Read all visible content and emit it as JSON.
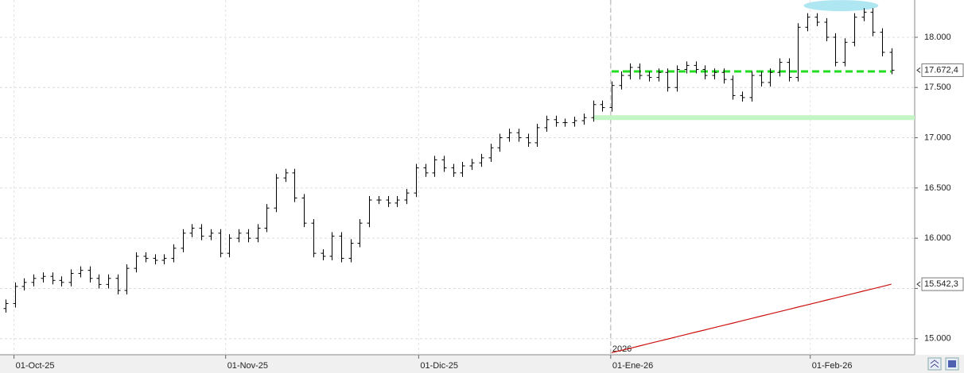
{
  "chart_data": {
    "type": "ohlc",
    "xlim": [
      -0.6,
      97.5
    ],
    "ylim": [
      14840,
      18371
    ],
    "yticks": [
      {
        "value": 15000,
        "label": "15.000"
      },
      {
        "value": 15500,
        "label": "15.500"
      },
      {
        "value": 16000,
        "label": "16.000"
      },
      {
        "value": 16500,
        "label": "16.500"
      },
      {
        "value": 17000,
        "label": "17.000"
      },
      {
        "value": 17500,
        "label": "17.500"
      },
      {
        "value": 18000,
        "label": "18.000"
      }
    ],
    "xticks": [
      {
        "value": 0.9,
        "label": "01-Oct-25"
      },
      {
        "value": 23.6,
        "label": "01-Nov-25"
      },
      {
        "value": 44.3,
        "label": "01-Dic-25"
      },
      {
        "value": 64.9,
        "label": "01-Ene-26"
      },
      {
        "value": 86.3,
        "label": "01-Feb-26"
      }
    ],
    "grid": true,
    "color": "#000000",
    "open": [
      15300,
      15350,
      15520,
      15560,
      15600,
      15620,
      15580,
      15560,
      15650,
      15680,
      15600,
      15540,
      15600,
      15480,
      15700,
      15820,
      15800,
      15780,
      15800,
      15900,
      16050,
      16100,
      16020,
      16050,
      15850,
      16000,
      16050,
      16000,
      16100,
      16300,
      16600,
      16650,
      16400,
      16150,
      15850,
      15820,
      16020,
      15800,
      15950,
      16150,
      16380,
      16380,
      16350,
      16380,
      16450,
      16700,
      16650,
      16780,
      16700,
      16650,
      16720,
      16750,
      16800,
      16900,
      17000,
      17050,
      17000,
      16950,
      17100,
      17180,
      17150,
      17150,
      17170,
      17200,
      17330,
      17300,
      17520,
      17620,
      17700,
      17620,
      17600,
      17650,
      17500,
      17680,
      17720,
      17680,
      17620,
      17650,
      17580,
      17420,
      17400,
      17620,
      17550,
      17650,
      17750,
      17600,
      18100,
      18200,
      18150,
      18000,
      17750,
      17950,
      18200,
      18250,
      18050,
      17850
    ],
    "high": [
      15390,
      15560,
      15600,
      15640,
      15660,
      15660,
      15620,
      15690,
      15720,
      15720,
      15640,
      15640,
      15640,
      15740,
      15860,
      15860,
      15840,
      15840,
      15940,
      16090,
      16140,
      16140,
      16090,
      16090,
      16040,
      16090,
      16090,
      16140,
      16340,
      16640,
      16690,
      16690,
      16440,
      16190,
      15890,
      16060,
      16060,
      15990,
      16190,
      16420,
      16420,
      16420,
      16420,
      16490,
      16740,
      16740,
      16820,
      16820,
      16740,
      16760,
      16790,
      16840,
      16940,
      17040,
      17090,
      17090,
      17040,
      17140,
      17220,
      17220,
      17190,
      17210,
      17240,
      17370,
      17370,
      17560,
      17660,
      17740,
      17740,
      17660,
      17690,
      17690,
      17720,
      17760,
      17760,
      17720,
      17690,
      17690,
      17620,
      17460,
      17660,
      17660,
      17690,
      17790,
      17790,
      18140,
      18240,
      18240,
      18190,
      18040,
      17990,
      18240,
      18290,
      18290,
      18090,
      17890
    ],
    "low": [
      15260,
      15310,
      15480,
      15520,
      15560,
      15540,
      15520,
      15520,
      15610,
      15560,
      15500,
      15500,
      15440,
      15440,
      15660,
      15760,
      15740,
      15740,
      15760,
      15860,
      16010,
      15980,
      15980,
      15810,
      15810,
      15960,
      15960,
      15960,
      16060,
      16260,
      16560,
      16360,
      16110,
      15810,
      15780,
      15780,
      15760,
      15760,
      15910,
      16110,
      16340,
      16310,
      16310,
      16340,
      16410,
      16610,
      16610,
      16660,
      16610,
      16610,
      16680,
      16710,
      16760,
      16860,
      16960,
      16960,
      16910,
      16910,
      17060,
      17110,
      17110,
      17110,
      17130,
      17160,
      17260,
      17260,
      17480,
      17580,
      17580,
      17560,
      17560,
      17460,
      17460,
      17640,
      17640,
      17580,
      17580,
      17540,
      17380,
      17360,
      17360,
      17510,
      17510,
      17610,
      17560,
      17560,
      18060,
      18110,
      17960,
      17710,
      17710,
      17910,
      18160,
      18010,
      17810,
      17632
    ],
    "close": [
      15350,
      15520,
      15560,
      15600,
      15620,
      15580,
      15560,
      15650,
      15680,
      15600,
      15540,
      15600,
      15480,
      15700,
      15820,
      15800,
      15780,
      15800,
      15900,
      16050,
      16100,
      16020,
      16050,
      15850,
      16000,
      16050,
      16000,
      16100,
      16300,
      16600,
      16650,
      16400,
      16150,
      15850,
      15820,
      16020,
      15800,
      15950,
      16150,
      16380,
      16380,
      16350,
      16380,
      16450,
      16700,
      16650,
      16780,
      16700,
      16650,
      16720,
      16750,
      16800,
      16900,
      17000,
      17050,
      17000,
      16950,
      17100,
      17180,
      17150,
      17150,
      17170,
      17200,
      17330,
      17300,
      17520,
      17620,
      17700,
      17620,
      17600,
      17650,
      17500,
      17680,
      17720,
      17680,
      17620,
      17650,
      17580,
      17420,
      17400,
      17620,
      17550,
      17650,
      17750,
      17600,
      18100,
      18200,
      18150,
      18000,
      17750,
      17950,
      18200,
      18250,
      18050,
      17850,
      17672.4
    ],
    "lines": [
      {
        "color": "#cc1111",
        "x": [
          65,
          66,
          67,
          68,
          69,
          70,
          71,
          72,
          73,
          74,
          75,
          76,
          77,
          78,
          79,
          80,
          81,
          82,
          83,
          84,
          85,
          86,
          87,
          88,
          89,
          90,
          91,
          92,
          93,
          94,
          95
        ],
        "values": [
          14860,
          14883,
          14905,
          14928,
          14951,
          14974,
          14996,
          15019,
          15042,
          15065,
          15087,
          15110,
          15133,
          15155,
          15178,
          15201,
          15224,
          15246,
          15269,
          15292,
          15315,
          15337,
          15360,
          15383,
          15405,
          15428,
          15451,
          15474,
          15496,
          15519,
          15542.3
        ]
      }
    ],
    "levels": [
      {
        "value": 17200,
        "color": "#c4f5c4",
        "style": "band",
        "x": [
          63,
          97.5
        ]
      },
      {
        "value": 17660,
        "color": "#22dd22",
        "style": "dashed",
        "x": [
          65,
          95
        ]
      }
    ],
    "ellipse": {
      "value": 18315,
      "color": "#aee6f2",
      "x": [
        85.6,
        93.6
      ]
    },
    "divider_x": 64.9,
    "year_label": "2026",
    "last_labels": [
      {
        "value": 17672.4,
        "label": "17.672,4"
      },
      {
        "value": 15542.3,
        "label": "15.542,3"
      }
    ]
  }
}
